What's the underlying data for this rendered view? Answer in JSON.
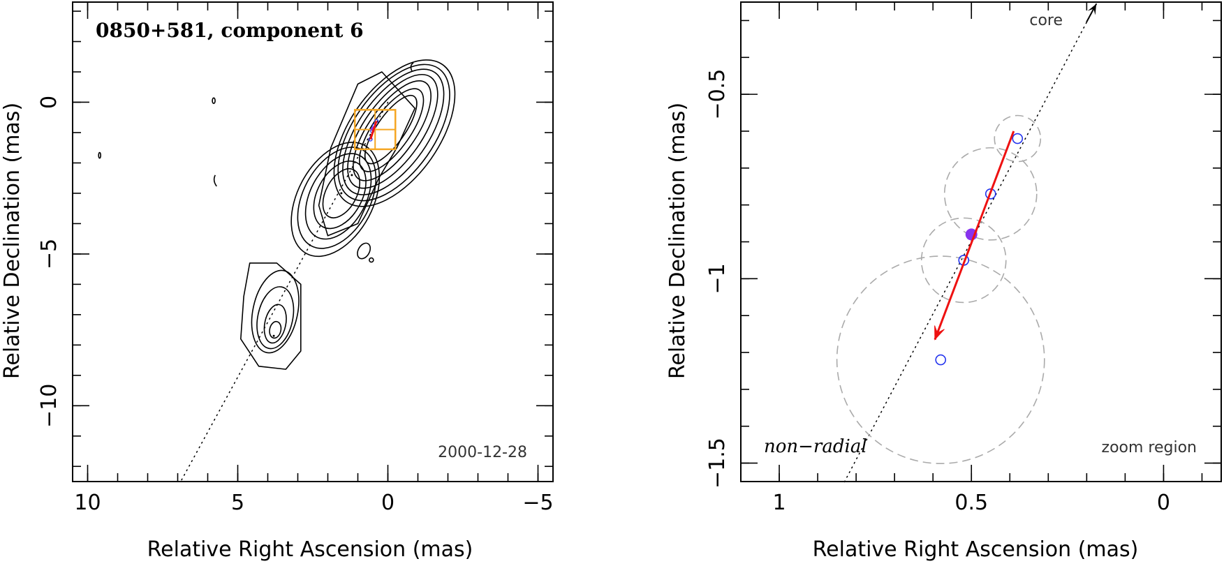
{
  "chart_data": [
    {
      "type": "scatter",
      "title": "0850+581, component 6",
      "date": "2000-12-28",
      "xlabel": "Relative Right Ascension (mas)",
      "ylabel": "Relative Declination (mas)",
      "xlim": [
        10.5,
        -5.5
      ],
      "ylim": [
        -12.5,
        3.3
      ],
      "xticks": [
        10,
        5,
        0,
        -5
      ],
      "xtick_labels": [
        "10",
        "5",
        "0",
        "−5"
      ],
      "yticks": [
        0,
        -5,
        -10
      ],
      "ytick_labels": [
        "0",
        "−5",
        "−10"
      ],
      "trajectory_line": [
        [
          0,
          0
        ],
        [
          6.9,
          -12.5
        ]
      ],
      "component_points": [
        {
          "x": 0.38,
          "y": -0.62
        },
        {
          "x": 0.45,
          "y": -0.77
        },
        {
          "x": 0.52,
          "y": -0.95
        },
        {
          "x": 0.58,
          "y": -1.22
        }
      ],
      "reference_point": {
        "x": 0.5,
        "y": -0.88
      },
      "zoom_box": {
        "x": [
          1.1,
          -0.25
        ],
        "y": [
          -0.25,
          -1.55
        ]
      },
      "colors": {
        "zoom_box": "#f5a623",
        "points": "#2233ee",
        "arrow": "#ee1111",
        "reference": "#8833ee"
      }
    },
    {
      "type": "scatter",
      "xlabel": "Relative Right Ascension (mas)",
      "ylabel": "Relative Declination (mas)",
      "xlim": [
        1.1,
        -0.15
      ],
      "ylim": [
        -1.55,
        -0.25
      ],
      "xticks": [
        1,
        0.5,
        0
      ],
      "xtick_labels": [
        "1",
        "0.5",
        "0"
      ],
      "yticks": [
        -0.5,
        -1,
        -1.5
      ],
      "ytick_labels": [
        "−0.5",
        "−1",
        "−1.5"
      ],
      "core_label": "core",
      "annotation_left": "non−radial",
      "annotation_right": "zoom region",
      "component_points": [
        {
          "x": 0.38,
          "y": -0.62,
          "err_radius": 0.06
        },
        {
          "x": 0.45,
          "y": -0.77,
          "err_radius": 0.12
        },
        {
          "x": 0.52,
          "y": -0.95,
          "err_radius": 0.11
        },
        {
          "x": 0.58,
          "y": -1.22,
          "err_radius": 0.27
        }
      ],
      "reference_point": {
        "x": 0.5,
        "y": -0.88
      },
      "arrow": {
        "from": [
          0.39,
          -0.6
        ],
        "to": [
          0.595,
          -1.165
        ]
      },
      "trajectory_line": [
        [
          0.175,
          -0.255
        ],
        [
          0.835,
          -1.56
        ]
      ],
      "colors": {
        "points": "#2233ee",
        "arrow": "#ee1111",
        "reference": "#8833ee",
        "circles": "#aaaaaa"
      }
    }
  ]
}
